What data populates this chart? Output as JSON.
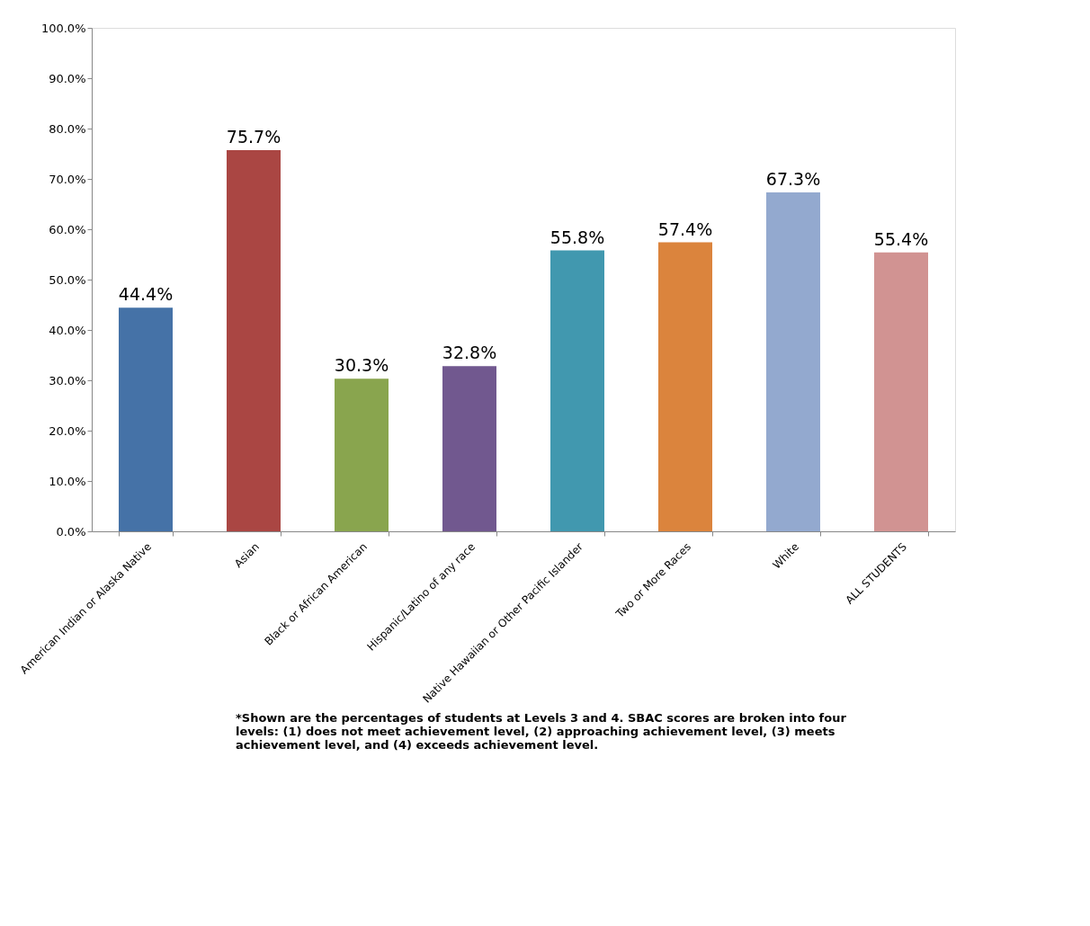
{
  "chart_data": {
    "type": "bar",
    "categories": [
      "American Indian or Alaska Native",
      "Asian",
      "Black or African American",
      "Hispanic/Latino of any race",
      "Native Hawaiian or Other Pacific Islander",
      "Two or More Races",
      "White",
      "ALL STUDENTS"
    ],
    "values": [
      44.4,
      75.7,
      30.3,
      32.8,
      55.8,
      57.4,
      67.3,
      55.4
    ],
    "colors": [
      "#4572a7",
      "#aa4643",
      "#89a54e",
      "#71588f",
      "#4198af",
      "#db843d",
      "#93a9cf",
      "#d19392"
    ],
    "value_labels": [
      "44.4%",
      "75.7%",
      "30.3%",
      "32.8%",
      "55.8%",
      "57.4%",
      "67.3%",
      "55.4%"
    ],
    "ylim": [
      0,
      100
    ],
    "yticks": [
      {
        "value": 0,
        "label": "0.0%"
      },
      {
        "value": 10,
        "label": "10.0%"
      },
      {
        "value": 20,
        "label": "20.0%"
      },
      {
        "value": 30,
        "label": "30.0%"
      },
      {
        "value": 40,
        "label": "40.0%"
      },
      {
        "value": 50,
        "label": "50.0%"
      },
      {
        "value": 60,
        "label": "60.0%"
      },
      {
        "value": 70,
        "label": "70.0%"
      },
      {
        "value": 80,
        "label": "80.0%"
      },
      {
        "value": 90,
        "label": "90.0%"
      },
      {
        "value": 100,
        "label": "100.0%"
      }
    ],
    "grid": false,
    "annotations": [
      "*Shown are the percentages of students at Levels 3 and 4. SBAC scores are broken into four levels: (1) does not meet achievement level, (2) approaching  achievement level, (3) meets achievement level, and (4) exceeds achievement level."
    ]
  }
}
